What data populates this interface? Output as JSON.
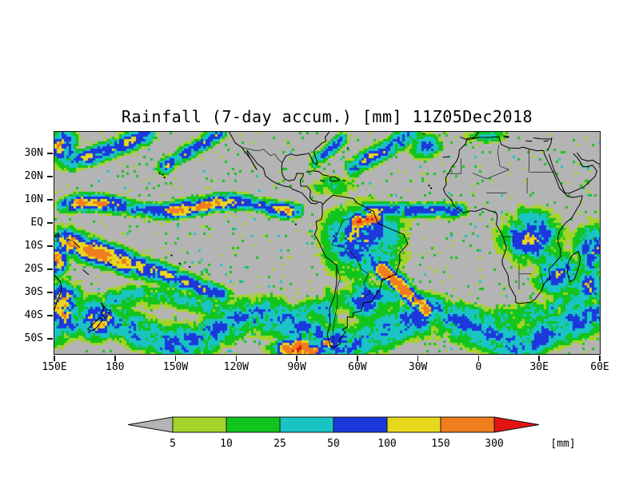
{
  "title": "Rainfall (7-day accum.) [mm] 11Z05Dec2018",
  "axes": {
    "lat_ticks": [
      {
        "label": "30N",
        "lat": 30
      },
      {
        "label": "20N",
        "lat": 20
      },
      {
        "label": "10N",
        "lat": 10
      },
      {
        "label": "EQ",
        "lat": 0
      },
      {
        "label": "10S",
        "lat": -10
      },
      {
        "label": "20S",
        "lat": -20
      },
      {
        "label": "30S",
        "lat": -30
      },
      {
        "label": "40S",
        "lat": -40
      },
      {
        "label": "50S",
        "lat": -50
      }
    ],
    "lon_ticks": [
      {
        "label": "150E",
        "lon": 150
      },
      {
        "label": "180",
        "lon": 180
      },
      {
        "label": "150W",
        "lon": 210
      },
      {
        "label": "120W",
        "lon": 240
      },
      {
        "label": "90W",
        "lon": 270
      },
      {
        "label": "60W",
        "lon": 300
      },
      {
        "label": "30W",
        "lon": 330
      },
      {
        "label": "0",
        "lon": 360
      },
      {
        "label": "30E",
        "lon": 390
      },
      {
        "label": "60E",
        "lon": 420
      }
    ]
  },
  "legend": {
    "labels": [
      "5",
      "10",
      "25",
      "50",
      "100",
      "150",
      "300"
    ],
    "unit_label": "[mm]",
    "below_color": "#b4b4b4",
    "colors": [
      "#a4d428",
      "#12c41e",
      "#1ac4c4",
      "#1c38dc",
      "#e8d81c",
      "#f07d1e"
    ],
    "above_color": "#e41414"
  },
  "chart_data": {
    "type": "heatmap",
    "title": "Rainfall (7-day accum.) [mm] 11Z05Dec2018",
    "variable": "Rainfall, 7-day accumulation",
    "units": "mm",
    "valid_time_label": "11Z05Dec2018",
    "x_tick_labels": [
      "150E",
      "180",
      "150W",
      "120W",
      "90W",
      "60W",
      "30W",
      "0",
      "30E",
      "60E"
    ],
    "y_tick_labels": [
      "30N",
      "20N",
      "10N",
      "EQ",
      "10S",
      "20S",
      "30S",
      "40S",
      "50S"
    ],
    "lon_range_deg_east": [
      150,
      420
    ],
    "lat_range_deg": [
      -56.5,
      39.3
    ],
    "thresholds_mm": [
      5,
      10,
      25,
      50,
      100,
      150,
      300
    ],
    "color_bins": [
      {
        "range_mm": "< 5",
        "color": "#b4b4b4",
        "note": "map background / no or trace rain"
      },
      {
        "range_mm": "5-10",
        "color": "#a4d428"
      },
      {
        "range_mm": "10-25",
        "color": "#12c41e"
      },
      {
        "range_mm": "25-50",
        "color": "#1ac4c4"
      },
      {
        "range_mm": "50-100",
        "color": "#1c38dc"
      },
      {
        "range_mm": "100-150",
        "color": "#e8d81c"
      },
      {
        "range_mm": "150-300",
        "color": "#f07d1e"
      },
      {
        "range_mm": "> 300",
        "color": "#e41414"
      }
    ],
    "legend_position": "bottom center",
    "grid": false,
    "notable_features": [
      "Continuous ITCZ rain band near 7N across the Pacific (150E-95W) with 150-300 mm orange cores",
      "SPCZ diagonal band from the Coral Sea (~155E,8S) toward 140W,30S with heavy totals near its west end",
      "Heavy rain (orange/red) near the Amazon mouth and near 60W on the equator over northern South America",
      "SACZ orange streak from southeast Brazil (~50W,20S) extending offshore toward 35W,38S",
      "Rain over the Congo basin and southeastern Africa (green/cyan with blue cells)",
      "Wavy green/cyan/blue storm-track bands along 35S-55S across all longitudes",
      "Very heavy cell (yellow/orange/red, >300 mm) at the bottom edge near 85W,55S",
      "Frontal green streaks in the NW Pacific (150E-160W, 25-38N) and NW Atlantic (65W-35W, 25-38N)",
      "Scattered light (5-25 mm) speckles over the subtropical oceans; dry gray over Sahara, Arabia and SE Pacific"
    ]
  }
}
